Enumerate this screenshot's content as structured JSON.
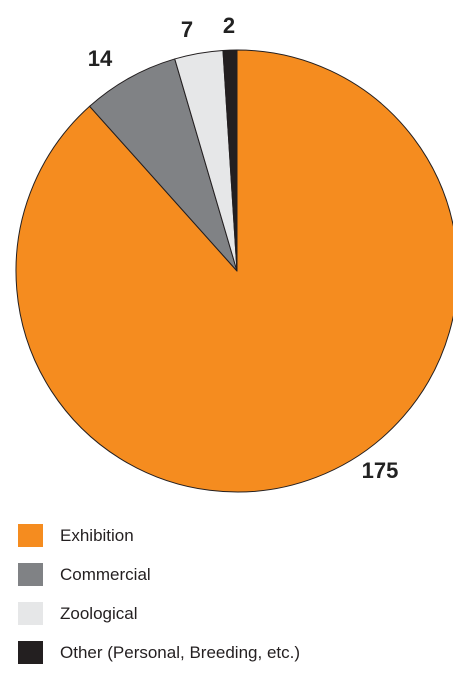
{
  "chart_data": {
    "type": "pie",
    "title": "",
    "start_angle": "12 o'clock",
    "direction": "clockwise",
    "legend_placement": "bottom-left",
    "slices": [
      {
        "name": "Exhibition",
        "value": 175,
        "label": "175",
        "color": "#F58C1F"
      },
      {
        "name": "Commercial",
        "value": 14,
        "label": "14",
        "color": "#808285"
      },
      {
        "name": "Zoological",
        "value": 7,
        "label": "7",
        "color": "#E6E7E8"
      },
      {
        "name": "Other (Personal, Breeding, etc.)",
        "value": 2,
        "label": "2",
        "color": "#231F20"
      }
    ]
  }
}
